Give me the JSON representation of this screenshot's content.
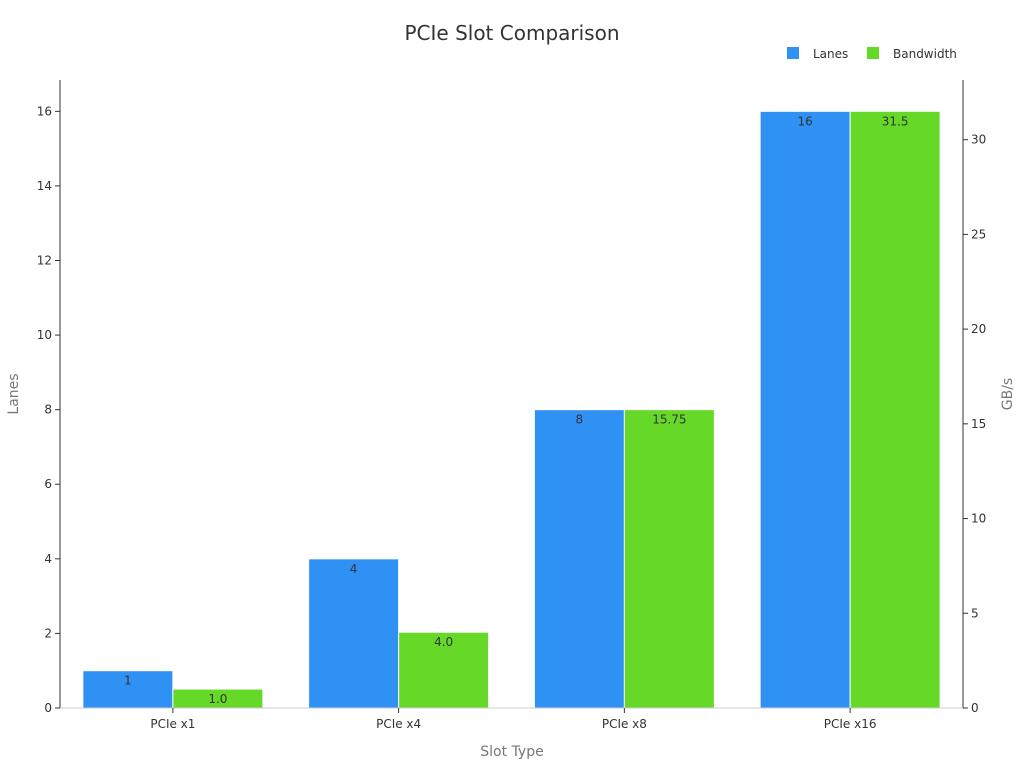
{
  "chart_data": {
    "type": "bar",
    "title": "PCIe Slot Comparison",
    "xlabel": "Slot Type",
    "ylabel": "Lanes",
    "y2label": "GB/s",
    "categories": [
      "PCIe x1",
      "PCIe x4",
      "PCIe x8",
      "PCIe x16"
    ],
    "series": [
      {
        "name": "Lanes",
        "axis": "left",
        "color": "#3091f5",
        "values": [
          1,
          4,
          8,
          16
        ],
        "labels": [
          "1",
          "4",
          "8",
          "16"
        ]
      },
      {
        "name": "Bandwidth",
        "axis": "right",
        "color": "#66d928",
        "values": [
          1.0,
          4.0,
          15.75,
          31.5
        ],
        "labels": [
          "1.0",
          "4.0",
          "15.75",
          "31.5"
        ]
      }
    ],
    "ylim": [
      0,
      16.84
    ],
    "yticks": [
      0,
      2,
      4,
      6,
      8,
      10,
      12,
      14,
      16
    ],
    "y2lim": [
      0,
      33.15
    ],
    "y2ticks": [
      0,
      5,
      10,
      15,
      20,
      25,
      30
    ],
    "legend": "top-right",
    "grid": false
  }
}
